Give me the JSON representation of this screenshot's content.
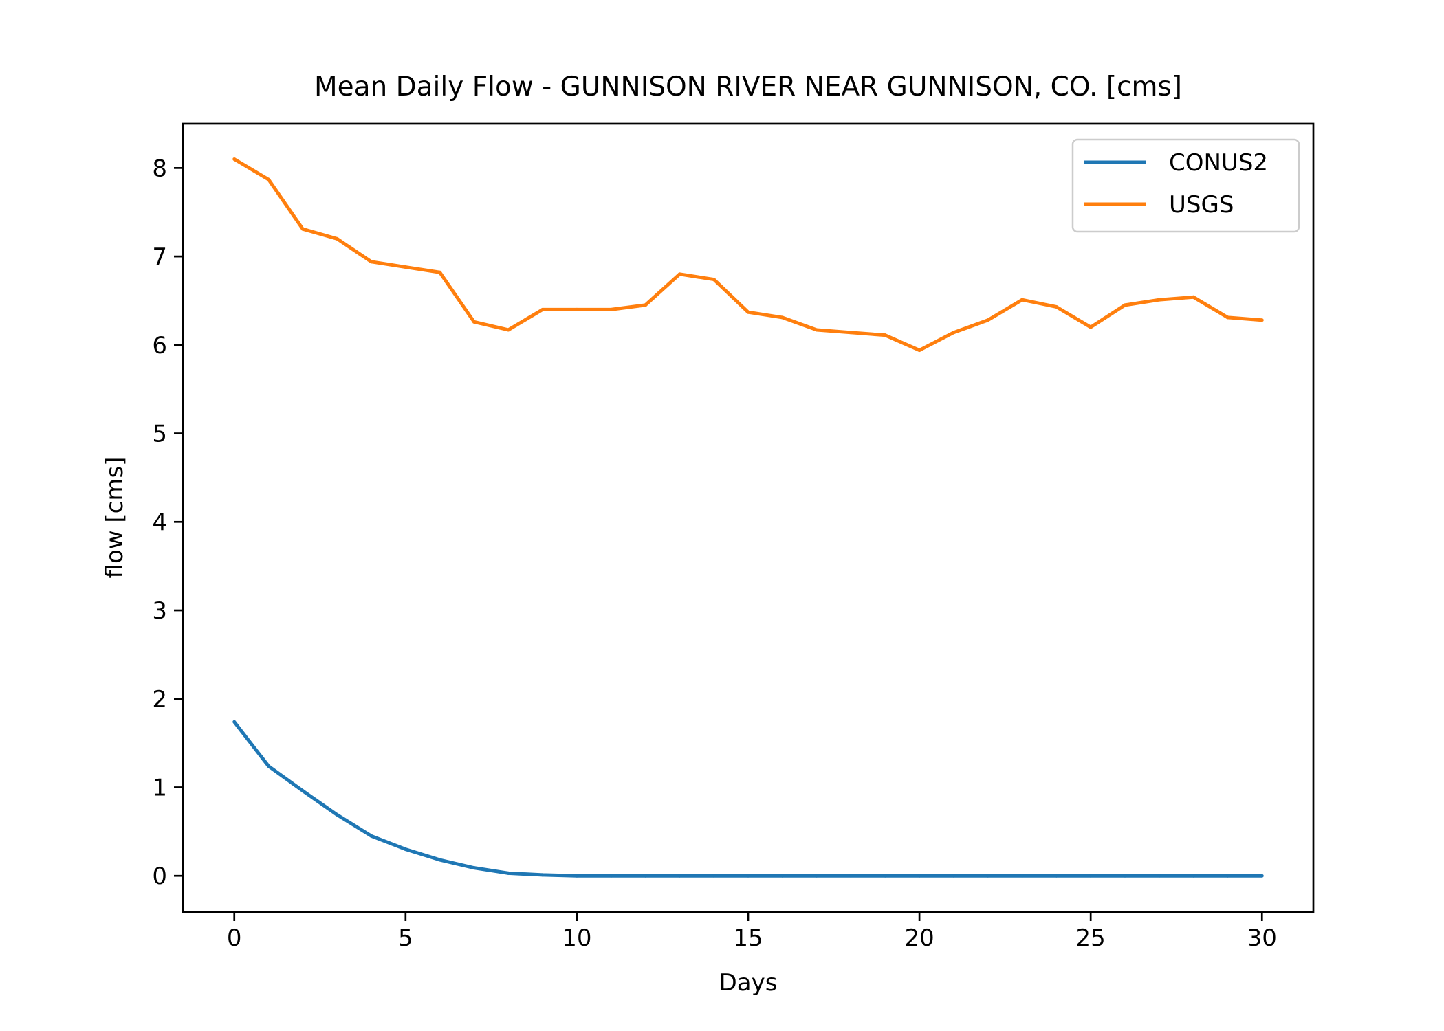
{
  "chart_data": {
    "type": "line",
    "title": "Mean Daily Flow - GUNNISON RIVER NEAR GUNNISON, CO. [cms]",
    "xlabel": "Days",
    "ylabel": "flow [cms]",
    "xlim": [
      -1.5,
      31.5
    ],
    "ylim": [
      -0.41,
      8.5
    ],
    "xticks": [
      0,
      5,
      10,
      15,
      20,
      25,
      30
    ],
    "yticks": [
      0,
      1,
      2,
      3,
      4,
      5,
      6,
      7,
      8
    ],
    "grid": false,
    "legend_position": "top-right",
    "x": [
      0,
      1,
      2,
      3,
      4,
      5,
      6,
      7,
      8,
      9,
      10,
      11,
      12,
      13,
      14,
      15,
      16,
      17,
      18,
      19,
      20,
      21,
      22,
      23,
      24,
      25,
      26,
      27,
      28,
      29,
      30
    ],
    "series": [
      {
        "name": "CONUS2",
        "color": "#1f77b4",
        "values": [
          1.74,
          1.24,
          0.96,
          0.69,
          0.45,
          0.3,
          0.18,
          0.09,
          0.03,
          0.01,
          0.0,
          0.0,
          0.0,
          0.0,
          0.0,
          0.0,
          0.0,
          0.0,
          0.0,
          0.0,
          0.0,
          0.0,
          0.0,
          0.0,
          0.0,
          0.0,
          0.0,
          0.0,
          0.0,
          0.0,
          0.0
        ]
      },
      {
        "name": "USGS",
        "color": "#ff7f0e",
        "values": [
          8.1,
          7.87,
          7.31,
          7.2,
          6.94,
          6.88,
          6.82,
          6.26,
          6.17,
          6.4,
          6.4,
          6.4,
          6.45,
          6.8,
          6.74,
          6.37,
          6.31,
          6.17,
          6.14,
          6.11,
          5.94,
          6.14,
          6.28,
          6.51,
          6.43,
          6.2,
          6.45,
          6.51,
          6.54,
          6.31,
          6.28
        ]
      }
    ]
  }
}
